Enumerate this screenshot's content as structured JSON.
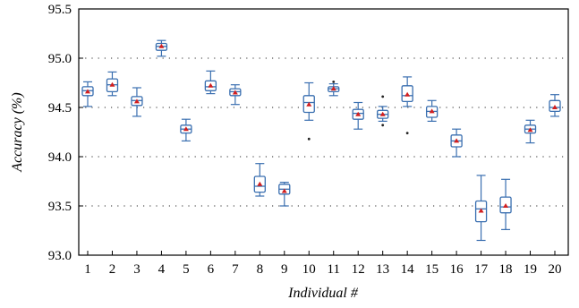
{
  "chart_data": {
    "type": "box",
    "xlabel": "Individual #",
    "ylabel": "Accuracy (%)",
    "ylim": [
      93.0,
      95.5
    ],
    "yticks": [
      "93.0",
      "93.5",
      "94.0",
      "94.5",
      "95.0",
      "95.5"
    ],
    "grid": true,
    "colors": {
      "box": "#3a6fb0",
      "mean": "#d21f1f",
      "outlier": "#222222"
    },
    "categories": [
      "1",
      "2",
      "3",
      "4",
      "5",
      "6",
      "7",
      "8",
      "9",
      "10",
      "11",
      "12",
      "13",
      "14",
      "15",
      "16",
      "17",
      "18",
      "19",
      "20"
    ],
    "boxes": [
      {
        "min": 94.51,
        "q1": 94.62,
        "median": 94.67,
        "q3": 94.71,
        "max": 94.76,
        "mean": 94.66,
        "outliers": []
      },
      {
        "min": 94.62,
        "q1": 94.66,
        "median": 94.73,
        "q3": 94.79,
        "max": 94.86,
        "mean": 94.73,
        "outliers": []
      },
      {
        "min": 94.41,
        "q1": 94.52,
        "median": 94.57,
        "q3": 94.61,
        "max": 94.7,
        "mean": 94.56,
        "outliers": []
      },
      {
        "min": 95.02,
        "q1": 95.08,
        "median": 95.12,
        "q3": 95.15,
        "max": 95.18,
        "mean": 95.12,
        "outliers": []
      },
      {
        "min": 94.16,
        "q1": 94.24,
        "median": 94.28,
        "q3": 94.32,
        "max": 94.38,
        "mean": 94.28,
        "outliers": []
      },
      {
        "min": 94.64,
        "q1": 94.67,
        "median": 94.71,
        "q3": 94.77,
        "max": 94.87,
        "mean": 94.72,
        "outliers": []
      },
      {
        "min": 94.53,
        "q1": 94.62,
        "median": 94.66,
        "q3": 94.69,
        "max": 94.73,
        "mean": 94.65,
        "outliers": []
      },
      {
        "min": 93.6,
        "q1": 93.64,
        "median": 93.7,
        "q3": 93.8,
        "max": 93.93,
        "mean": 93.72,
        "outliers": []
      },
      {
        "min": 93.5,
        "q1": 93.62,
        "median": 93.67,
        "q3": 93.72,
        "max": 93.74,
        "mean": 93.65,
        "outliers": []
      },
      {
        "min": 94.37,
        "q1": 94.45,
        "median": 94.55,
        "q3": 94.62,
        "max": 94.75,
        "mean": 94.53,
        "outliers": [
          94.18
        ]
      },
      {
        "min": 94.62,
        "q1": 94.66,
        "median": 94.69,
        "q3": 94.71,
        "max": 94.74,
        "mean": 94.69,
        "outliers": [
          94.76
        ]
      },
      {
        "min": 94.28,
        "q1": 94.38,
        "median": 94.44,
        "q3": 94.48,
        "max": 94.55,
        "mean": 94.43,
        "outliers": []
      },
      {
        "min": 94.36,
        "q1": 94.39,
        "median": 94.43,
        "q3": 94.47,
        "max": 94.51,
        "mean": 94.43,
        "outliers": [
          94.32,
          94.61
        ]
      },
      {
        "min": 94.51,
        "q1": 94.56,
        "median": 94.62,
        "q3": 94.72,
        "max": 94.81,
        "mean": 94.63,
        "outliers": [
          94.24
        ]
      },
      {
        "min": 94.36,
        "q1": 94.4,
        "median": 94.46,
        "q3": 94.51,
        "max": 94.57,
        "mean": 94.46,
        "outliers": []
      },
      {
        "min": 94.0,
        "q1": 94.1,
        "median": 94.16,
        "q3": 94.22,
        "max": 94.28,
        "mean": 94.16,
        "outliers": []
      },
      {
        "min": 93.15,
        "q1": 93.34,
        "median": 93.47,
        "q3": 93.55,
        "max": 93.81,
        "mean": 93.45,
        "outliers": []
      },
      {
        "min": 93.26,
        "q1": 93.43,
        "median": 93.49,
        "q3": 93.59,
        "max": 93.77,
        "mean": 93.5,
        "outliers": []
      },
      {
        "min": 94.14,
        "q1": 94.24,
        "median": 94.28,
        "q3": 94.32,
        "max": 94.37,
        "mean": 94.27,
        "outliers": []
      },
      {
        "min": 94.41,
        "q1": 94.46,
        "median": 94.5,
        "q3": 94.57,
        "max": 94.63,
        "mean": 94.5,
        "outliers": []
      }
    ]
  }
}
